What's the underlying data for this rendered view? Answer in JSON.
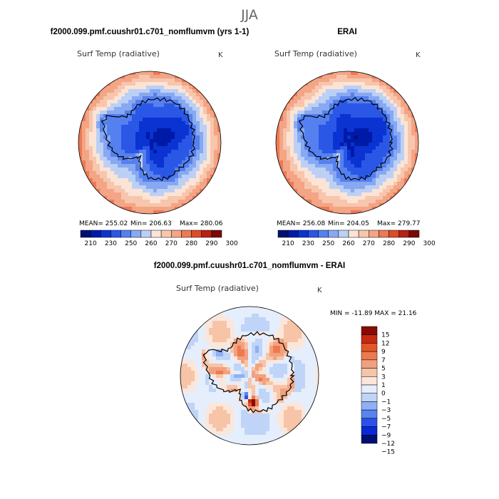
{
  "figure": {
    "season": "JJA",
    "colors": {
      "abs": [
        "#000f73",
        "#001aa8",
        "#0a33d1",
        "#2a57e6",
        "#5580ef",
        "#88a8f2",
        "#bcd0f6",
        "#fbe4d6",
        "#f7c6ad",
        "#f3a586",
        "#ec7a55",
        "#dd4c2a",
        "#b52313",
        "#7a0a05"
      ],
      "diff": [
        "#000f73",
        "#0a28d6",
        "#2a52ea",
        "#5a82f0",
        "#8fb0f4",
        "#c0d4f8",
        "#e5eefc",
        "#fbe6da",
        "#f7c4a8",
        "#f2a17f",
        "#ed7a4f",
        "#e55525",
        "#c72a10",
        "#8a0a05"
      ],
      "coast": "#000000"
    }
  },
  "chart_data": [
    {
      "type": "heatmap",
      "title": "f2000.099.pmf.cuushr01.c701_nomflumvm (yrs 1-1)",
      "subtitle": "Surf Temp (radiative)",
      "units": "K",
      "stats": {
        "mean_label": "MEAN= 255.02",
        "min_label": "Min= 206.63",
        "max_label": "Max= 280.06",
        "mean": 255.02,
        "min": 206.63,
        "max": 280.06
      },
      "levels": [
        210,
        220,
        230,
        240,
        250,
        255,
        260,
        265,
        270,
        275,
        280,
        285,
        290,
        295,
        300
      ],
      "tick_labels": [
        "210",
        "230",
        "250",
        "260",
        "270",
        "280",
        "290",
        "300"
      ],
      "field_bias": 0
    },
    {
      "type": "heatmap",
      "title": "ERAI",
      "subtitle": "Surf Temp (radiative)",
      "units": "K",
      "stats": {
        "mean_label": "MEAN= 256.08",
        "min_label": "Min= 204.05",
        "max_label": "Max= 279.77",
        "mean": 256.08,
        "min": 204.05,
        "max": 279.77
      },
      "levels": [
        210,
        220,
        230,
        240,
        250,
        255,
        260,
        265,
        270,
        275,
        280,
        285,
        290,
        295,
        300
      ],
      "tick_labels": [
        "210",
        "230",
        "250",
        "260",
        "270",
        "280",
        "290",
        "300"
      ],
      "field_bias": -1
    },
    {
      "type": "heatmap",
      "title": "f2000.099.pmf.cuushr01.c701_nomflumvm - ERAI",
      "subtitle": "Surf Temp (radiative)",
      "units": "K",
      "stats": {
        "minmax_label": "MIN = -11.89  MAX =  21.16",
        "min": -11.89,
        "max": 21.16
      },
      "levels": [
        -15,
        -12,
        -9,
        -7,
        -5,
        -3,
        -1,
        0,
        1,
        3,
        5,
        7,
        9,
        12,
        15
      ],
      "tick_labels": [
        "15",
        "12",
        "9",
        "7",
        "5",
        "3",
        "1",
        "0",
        "−1",
        "−3",
        "−5",
        "−7",
        "−9",
        "−12",
        "−15"
      ]
    }
  ]
}
